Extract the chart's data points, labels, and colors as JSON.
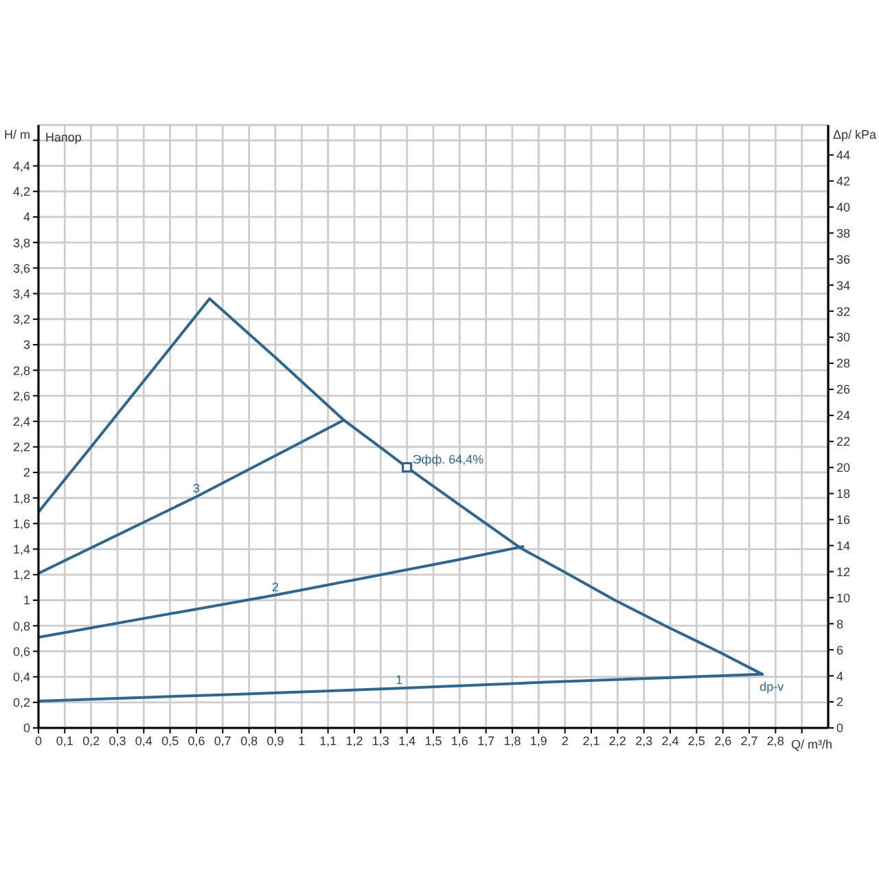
{
  "chart_data": {
    "type": "line",
    "xlabel": "Q/ m³/h",
    "ylabel": "H/ m",
    "y2label": "Δp/ kPa",
    "xlim": [
      0,
      3
    ],
    "xticks": [
      0,
      {
        "value": 0.1,
        "label": "0,1"
      },
      {
        "value": 0.2,
        "label": "0,2"
      },
      {
        "value": 0.3,
        "label": "0,3"
      },
      {
        "value": 0.4,
        "label": "0,4"
      },
      {
        "value": 0.5,
        "label": "0,5"
      },
      {
        "value": 0.6,
        "label": "0,6"
      },
      {
        "value": 0.7,
        "label": "0,7"
      },
      {
        "value": 0.8,
        "label": "0,8"
      },
      {
        "value": 0.9,
        "label": "0,9"
      },
      1,
      {
        "value": 1.1,
        "label": "1,1"
      },
      {
        "value": 1.2,
        "label": "1,2"
      },
      {
        "value": 1.3,
        "label": "1,3"
      },
      {
        "value": 1.4,
        "label": "1,4"
      },
      {
        "value": 1.5,
        "label": "1,5"
      },
      {
        "value": 1.6,
        "label": "1,6"
      },
      {
        "value": 1.7,
        "label": "1,7"
      },
      {
        "value": 1.8,
        "label": "1,8"
      },
      {
        "value": 1.9,
        "label": "1,9"
      },
      2,
      {
        "value": 2.1,
        "label": "2,1"
      },
      {
        "value": 2.2,
        "label": "2,2"
      },
      {
        "value": 2.3,
        "label": "2,3"
      },
      {
        "value": 2.4,
        "label": "2,4"
      },
      {
        "value": 2.5,
        "label": "2,5"
      },
      {
        "value": 2.6,
        "label": "2,6"
      },
      {
        "value": 2.7,
        "label": "2,7"
      },
      {
        "value": 2.8,
        "label": "2,8"
      },
      {
        "value": 2.9,
        "label": null
      }
    ],
    "ylim": [
      0,
      4.72
    ],
    "yticks": [
      0,
      {
        "value": 0.2,
        "label": "0,2"
      },
      {
        "value": 0.4,
        "label": "0,4"
      },
      {
        "value": 0.6,
        "label": "0,6"
      },
      {
        "value": 0.8,
        "label": "0,8"
      },
      1,
      {
        "value": 1.2,
        "label": "1,2"
      },
      {
        "value": 1.4,
        "label": "1,4"
      },
      {
        "value": 1.6,
        "label": "1,6"
      },
      {
        "value": 1.8,
        "label": "1,8"
      },
      2,
      {
        "value": 2.2,
        "label": "2,2"
      },
      {
        "value": 2.4,
        "label": "2,4"
      },
      {
        "value": 2.6,
        "label": "2,6"
      },
      {
        "value": 2.8,
        "label": "2,8"
      },
      3,
      {
        "value": 3.2,
        "label": "3,2"
      },
      {
        "value": 3.4,
        "label": "3,4"
      },
      {
        "value": 3.6,
        "label": "3,6"
      },
      {
        "value": 3.8,
        "label": "3,8"
      },
      4,
      {
        "value": 4.2,
        "label": "4,2"
      },
      {
        "value": 4.4,
        "label": "4,4"
      },
      {
        "value": 4.6,
        "label": null
      }
    ],
    "y2lim": [
      0,
      46.3
    ],
    "y2ticks": [
      0,
      2,
      4,
      6,
      8,
      10,
      12,
      14,
      16,
      18,
      20,
      22,
      24,
      26,
      28,
      30,
      32,
      34,
      36,
      38,
      40,
      42,
      44
    ],
    "grid": true,
    "series": [
      {
        "name": "1",
        "color": "#2f6690",
        "x": [
          0,
          0.7,
          1.37,
          1.95,
          2.75
        ],
        "values": [
          0.21,
          0.26,
          0.31,
          0.36,
          0.42
        ]
      },
      {
        "name": "2",
        "color": "#2f6690",
        "x": [
          0,
          0.9,
          1.58,
          1.84
        ],
        "values": [
          0.71,
          1.04,
          1.31,
          1.42
        ]
      },
      {
        "name": "3",
        "color": "#2f6690",
        "x": [
          0,
          0.6,
          1.16
        ],
        "values": [
          1.21,
          1.81,
          2.41
        ]
      },
      {
        "color": "#2f6690",
        "x": [
          0,
          0.2,
          0.65,
          0.9,
          1.16,
          1.29,
          1.4,
          1.59,
          1.83,
          1.99,
          2.19,
          2.39,
          2.59,
          2.75
        ],
        "values": [
          1.69,
          2.2,
          3.36,
          2.9,
          2.41,
          2.21,
          2.04,
          1.76,
          1.41,
          1.23,
          1.0,
          0.79,
          0.59,
          0.42
        ]
      },
      {
        "type": "scatter",
        "color": "#2f6690",
        "marker": "square",
        "x": [
          1.4
        ],
        "values": [
          2.04
        ]
      }
    ],
    "annotations": [
      "Напор",
      {
        "text": "Эфф. 64,4%",
        "x": 1.4,
        "y": 2.04
      },
      {
        "text": "dp-v",
        "x": 2.75,
        "y": 0.42
      }
    ]
  }
}
